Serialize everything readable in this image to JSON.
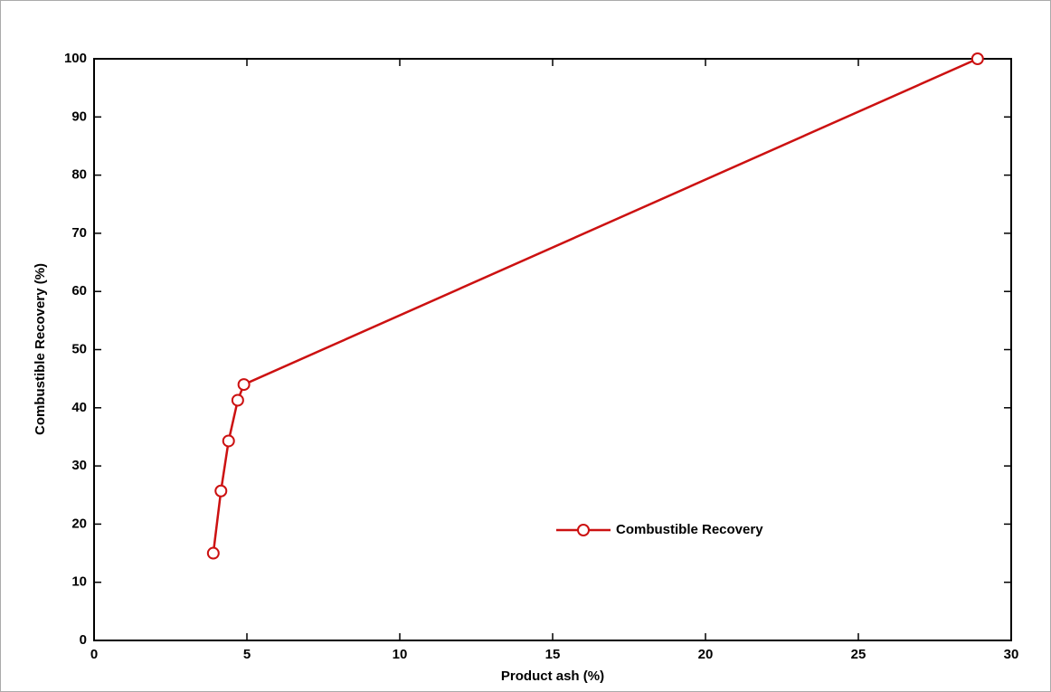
{
  "chart_data": {
    "type": "line",
    "xlabel": "Product ash (%)",
    "ylabel": "Combustible Recovery (%)",
    "x": [
      3.9,
      4.15,
      4.4,
      4.7,
      4.9,
      28.9
    ],
    "series": [
      {
        "name": "Combustible Recovery",
        "color": "#cc1111",
        "marker": "o",
        "values": [
          15,
          25.7,
          34.3,
          41.3,
          44,
          100
        ]
      }
    ],
    "xlim": [
      0,
      30
    ],
    "ylim": [
      0,
      100
    ],
    "xticks": [
      0,
      5,
      10,
      15,
      20,
      25,
      30
    ],
    "yticks": [
      0,
      10,
      20,
      30,
      40,
      50,
      60,
      70,
      80,
      90,
      100
    ],
    "legend": "lower right"
  }
}
